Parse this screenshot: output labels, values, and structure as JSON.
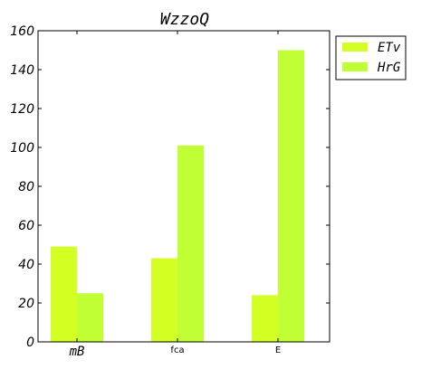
{
  "chart_data": {
    "type": "bar",
    "title": "WzzoQ",
    "xlabel": "",
    "ylabel": "",
    "categories": [
      "mB",
      "fca",
      "E"
    ],
    "series": [
      {
        "name": "ETv",
        "values": [
          49,
          43,
          24
        ],
        "color": "#d4ff22"
      },
      {
        "name": "HrG",
        "values": [
          25,
          101,
          150
        ],
        "color": "#bfff33"
      }
    ],
    "ylim": [
      0,
      160
    ],
    "yticks": [
      0,
      20,
      40,
      60,
      80,
      100,
      120,
      140,
      160
    ],
    "grid": false,
    "legend_position": "outside-top-right"
  }
}
